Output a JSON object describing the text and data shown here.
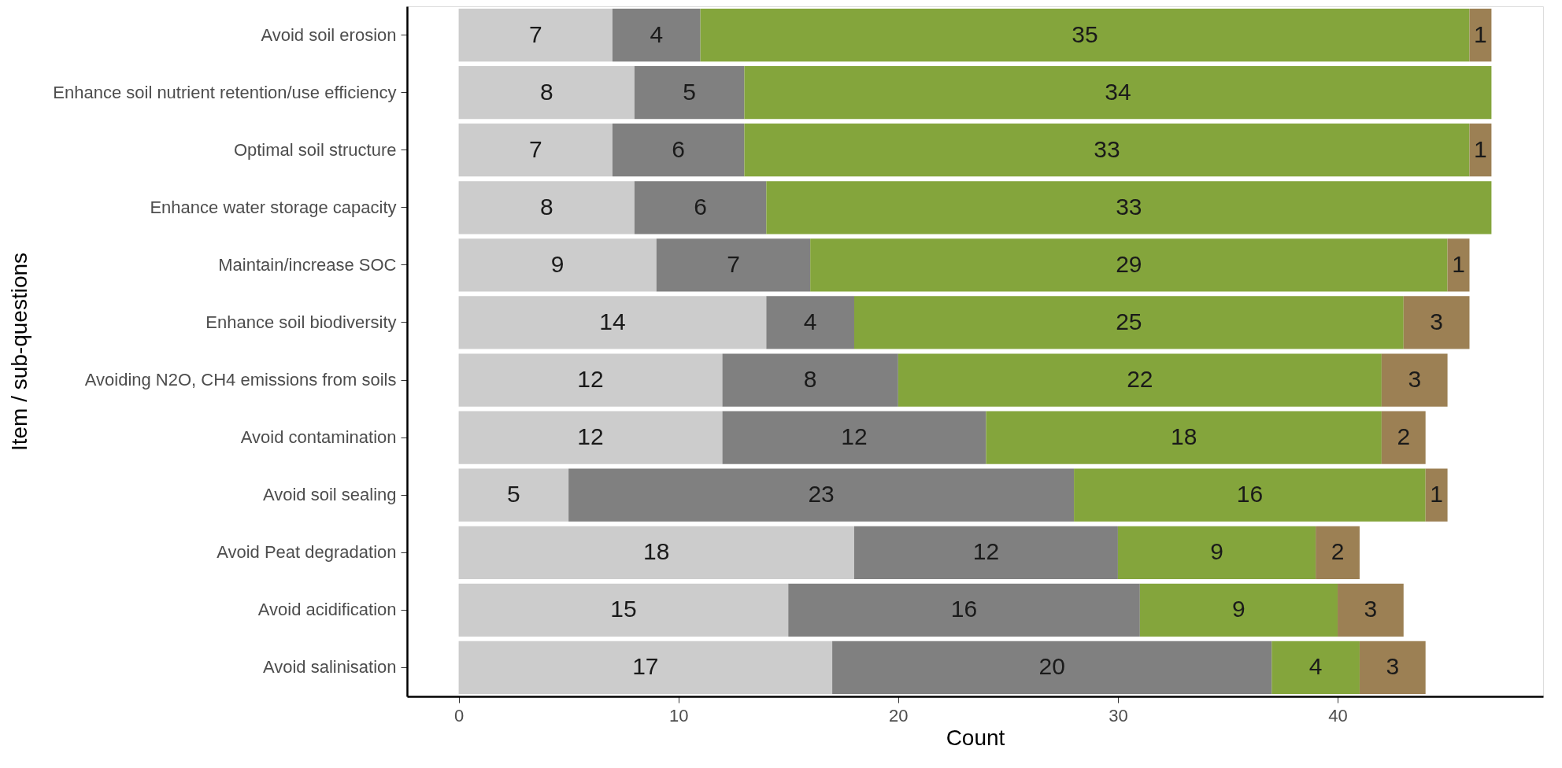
{
  "chart_data": {
    "type": "bar",
    "orientation": "horizontal",
    "stacked": true,
    "data_labels": true,
    "grid": false,
    "legend": false,
    "xlabel": "Count",
    "ylabel": "Item / sub-questions",
    "categories": [
      "Avoid soil erosion",
      "Enhance soil nutrient retention/use efficiency",
      "Optimal soil structure",
      "Enhance water storage capacity",
      "Maintain/increase SOC",
      "Enhance soil biodiversity",
      "Avoiding N2O, CH4 emissions from soils",
      "Avoid contamination",
      "Avoid soil sealing",
      "Avoid Peat degradation",
      "Avoid acidification",
      "Avoid salinisation"
    ],
    "series": [
      {
        "color": "#cccccc",
        "values": [
          7,
          8,
          7,
          8,
          9,
          14,
          12,
          12,
          5,
          18,
          15,
          17
        ]
      },
      {
        "color": "#808080",
        "values": [
          4,
          5,
          6,
          6,
          7,
          4,
          8,
          12,
          23,
          12,
          16,
          20
        ]
      },
      {
        "color": "#84a53c",
        "values": [
          35,
          34,
          33,
          33,
          29,
          25,
          22,
          18,
          16,
          9,
          9,
          4
        ]
      },
      {
        "color": "#9c8054",
        "values": [
          1,
          null,
          1,
          null,
          1,
          3,
          3,
          2,
          1,
          2,
          3,
          3
        ]
      }
    ],
    "xlim": [
      -2.35,
      49.35
    ],
    "xticks": [
      0,
      10,
      20,
      30,
      40
    ]
  }
}
